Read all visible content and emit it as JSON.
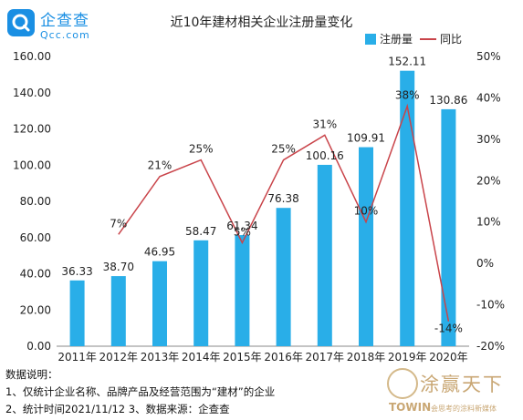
{
  "brand": {
    "name": "企查查",
    "domain": "Qcc.com",
    "icon": "qcc-logo-icon"
  },
  "watermark": {
    "name": "涂赢天下",
    "english": "TOWIN",
    "slogan": "会思考的涂料新媒体"
  },
  "notes": {
    "heading": "数据说明：",
    "line1": "1、仅统计企业名称、品牌产品及经营范围为“建材”的企业",
    "line2": "2、统计时间2021/11/12  3、数据来源：企查查"
  },
  "colors": {
    "bar": "#29aee8",
    "line": "#c9444a"
  },
  "chart_data": {
    "type": "bar",
    "title": "近10年建材相关企业注册量变化",
    "categories": [
      "2011年",
      "2012年",
      "2013年",
      "2014年",
      "2015年",
      "2016年",
      "2017年",
      "2018年",
      "2019年",
      "2020年"
    ],
    "series": [
      {
        "name": "注册量",
        "type": "bar",
        "axis": "left",
        "values": [
          36.33,
          38.7,
          46.95,
          58.47,
          61.34,
          76.38,
          100.16,
          109.91,
          152.11,
          130.86
        ],
        "labels": [
          "36.33",
          "38.70",
          "46.95",
          "58.47",
          "61.34",
          "76.38",
          "100.16",
          "109.91",
          "152.11",
          "130.86"
        ]
      },
      {
        "name": "同比",
        "type": "line",
        "axis": "right",
        "values": [
          null,
          7,
          21,
          25,
          5,
          25,
          31,
          10,
          38,
          -14
        ],
        "labels": [
          "",
          "7%",
          "21%",
          "25%",
          "5%",
          "25%",
          "31%",
          "10%",
          "38%",
          "-14%"
        ]
      }
    ],
    "ylim": [
      0,
      160
    ],
    "yticks": [
      "0.00",
      "20.00",
      "40.00",
      "60.00",
      "80.00",
      "100.00",
      "120.00",
      "140.00",
      "160.00"
    ],
    "y2lim": [
      -20,
      50
    ],
    "y2ticks": [
      "-20%",
      "-10%",
      "0%",
      "10%",
      "20%",
      "30%",
      "40%",
      "50%"
    ],
    "legend": "top-right",
    "grid": false
  }
}
